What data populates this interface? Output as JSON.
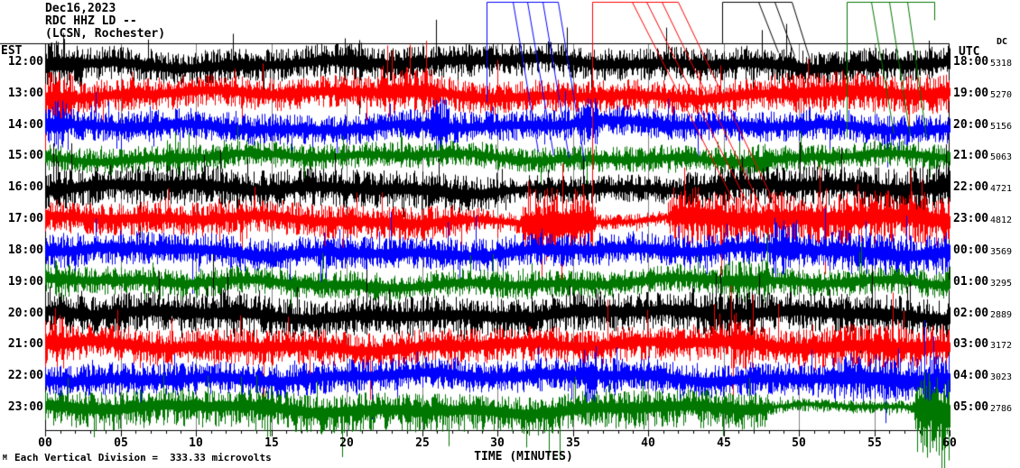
{
  "header": {
    "date": "Dec16,2023",
    "channel": "RDC HHZ LD --",
    "station": "(LCSN, Rochester)"
  },
  "left_axis": {
    "label": "EST"
  },
  "right_axis": {
    "label": "UTC",
    "dc_label": "DC"
  },
  "x_axis": {
    "label": "TIME (MINUTES)"
  },
  "footer": {
    "scale_note": "Each Vertical Division =  333.33 microvolts",
    "logo": "M"
  },
  "colors": {
    "black": "#000000",
    "red": "#ff0000",
    "blue": "#0000ff",
    "green": "#007700",
    "grid": "#808080",
    "frame": "#000000",
    "background": "#ffffff"
  },
  "chart_data": {
    "type": "line",
    "subtype": "helicorder-seismogram",
    "title": "RDC HHZ LD -- (LCSN, Rochester) Dec16,2023",
    "xlabel": "TIME (MINUTES)",
    "x_range": [
      0,
      60
    ],
    "x_ticks": [
      "00",
      "05",
      "10",
      "15",
      "20",
      "25",
      "30",
      "35",
      "40",
      "45",
      "50",
      "55",
      "60"
    ],
    "minutes_per_row": 60,
    "grid": {
      "vertical_every_min": 5,
      "color": "#808080",
      "on": true
    },
    "microvolts_per_division": 333.33,
    "rows": [
      {
        "est": "12:00",
        "utc": "18:00",
        "dc": 5318,
        "color": "black",
        "seed": 11,
        "amp": 13,
        "bias": 1.0,
        "envelope": [
          [
            0,
            2.5,
            1.5
          ],
          [
            19.5,
            21,
            1.35
          ]
        ]
      },
      {
        "est": "13:00",
        "utc": "19:00",
        "dc": 5270,
        "color": "red",
        "seed": 22,
        "amp": 12.5,
        "bias": 1.0,
        "envelope": [
          [
            0,
            2,
            1.7
          ],
          [
            22,
            26,
            1.5
          ],
          [
            48,
            60,
            1.25
          ]
        ]
      },
      {
        "est": "14:00",
        "utc": "20:00",
        "dc": 5156,
        "color": "blue",
        "seed": 33,
        "amp": 12,
        "bias": 1.0,
        "envelope": [
          [
            0,
            1.5,
            1.6
          ],
          [
            25.6,
            26.8,
            2.1
          ],
          [
            35.5,
            36.8,
            1.5
          ]
        ]
      },
      {
        "est": "15:00",
        "utc": "21:00",
        "dc": 5063,
        "color": "green",
        "seed": 44,
        "amp": 10,
        "bias": 1.0,
        "envelope": [
          [
            8,
            9.2,
            1.4
          ],
          [
            46.5,
            48,
            1.4
          ]
        ]
      },
      {
        "est": "16:00",
        "utc": "22:00",
        "dc": 4721,
        "color": "black",
        "seed": 55,
        "amp": 15,
        "bias": 1.0,
        "envelope": [
          [
            30,
            42,
            0.7
          ],
          [
            55,
            60,
            1.15
          ]
        ]
      },
      {
        "est": "17:00",
        "utc": "23:00",
        "dc": 4812,
        "color": "red",
        "seed": 66,
        "amp": 13,
        "bias": 1.0,
        "envelope": [
          [
            28,
            31.6,
            0.65
          ],
          [
            31.8,
            36.3,
            2.2
          ],
          [
            36.5,
            41.3,
            0.45
          ],
          [
            41.5,
            45,
            1.9
          ],
          [
            45,
            60,
            1.55
          ]
        ]
      },
      {
        "est": "18:00",
        "utc": "00:00",
        "dc": 3569,
        "color": "blue",
        "seed": 77,
        "amp": 13,
        "bias": 1.0,
        "envelope": [
          [
            48.3,
            50,
            1.8
          ],
          [
            52,
            60,
            1.25
          ]
        ]
      },
      {
        "est": "19:00",
        "utc": "01:00",
        "dc": 3295,
        "color": "green",
        "seed": 88,
        "amp": 11,
        "bias": 1.0,
        "envelope": [
          [
            0,
            2,
            1.3
          ],
          [
            45,
            48,
            1.5
          ]
        ]
      },
      {
        "est": "20:00",
        "utc": "02:00",
        "dc": 2889,
        "color": "black",
        "seed": 99,
        "amp": 15,
        "bias": 1.0,
        "envelope": [
          [
            11.5,
            13,
            1.3
          ],
          [
            42,
            47,
            1.15
          ]
        ]
      },
      {
        "est": "21:00",
        "utc": "03:00",
        "dc": 3172,
        "color": "red",
        "seed": 111,
        "amp": 14,
        "bias": 1.0,
        "envelope": [
          [
            0,
            1.2,
            1.5
          ],
          [
            45.5,
            47,
            1.8
          ],
          [
            50,
            60,
            1.2
          ]
        ]
      },
      {
        "est": "22:00",
        "utc": "04:00",
        "dc": 3023,
        "color": "blue",
        "seed": 122,
        "amp": 13,
        "bias": 1.0,
        "envelope": [
          [
            35.6,
            36.6,
            2.0
          ],
          [
            52,
            60,
            1.45
          ]
        ]
      },
      {
        "est": "23:00",
        "utc": "05:00",
        "dc": 2786,
        "color": "green",
        "seed": 133,
        "amp": 13,
        "bias": 1.3,
        "envelope": [
          [
            14,
            15.2,
            1.6
          ],
          [
            48,
            57.5,
            0.35
          ],
          [
            57.8,
            60,
            2.2
          ]
        ]
      }
    ],
    "annotations": {
      "groups": [
        {
          "name": "event-flag-blue",
          "color": "blue",
          "lines": [
            [
              539,
              2,
              618,
              2
            ],
            [
              539,
              2,
              539,
              113
            ],
            [
              568,
              2,
              596,
              168
            ],
            [
              584,
              2,
              613,
              172
            ],
            [
              601,
              2,
              630,
              175
            ],
            [
              618,
              2,
              647,
              178
            ]
          ]
        },
        {
          "name": "event-flag-red",
          "color": "red",
          "lines": [
            [
              656,
              2,
              751,
              2
            ],
            [
              656,
              2,
              656,
              238
            ],
            [
              700,
              2,
              812,
              222
            ],
            [
              716,
              2,
              828,
              226
            ],
            [
              733,
              2,
              843,
              230
            ],
            [
              751,
              2,
              862,
              234
            ]
          ]
        },
        {
          "name": "event-flag-black",
          "color": "black",
          "lines": [
            [
              800,
              2,
              877,
              2
            ],
            [
              800,
              2,
              800,
              48
            ],
            [
              840,
              2,
              862,
              58
            ],
            [
              858,
              2,
              880,
              62
            ],
            [
              877,
              2,
              897,
              66
            ]
          ]
        },
        {
          "name": "event-flag-green",
          "color": "green",
          "lines": [
            [
              938,
              2,
              1035,
              2
            ],
            [
              938,
              2,
              938,
              152
            ],
            [
              965,
              2,
              990,
              148
            ],
            [
              985,
              2,
              1008,
              150
            ],
            [
              1005,
              2,
              1026,
              152
            ],
            [
              1035,
              2,
              1035,
              22
            ]
          ]
        }
      ]
    }
  }
}
